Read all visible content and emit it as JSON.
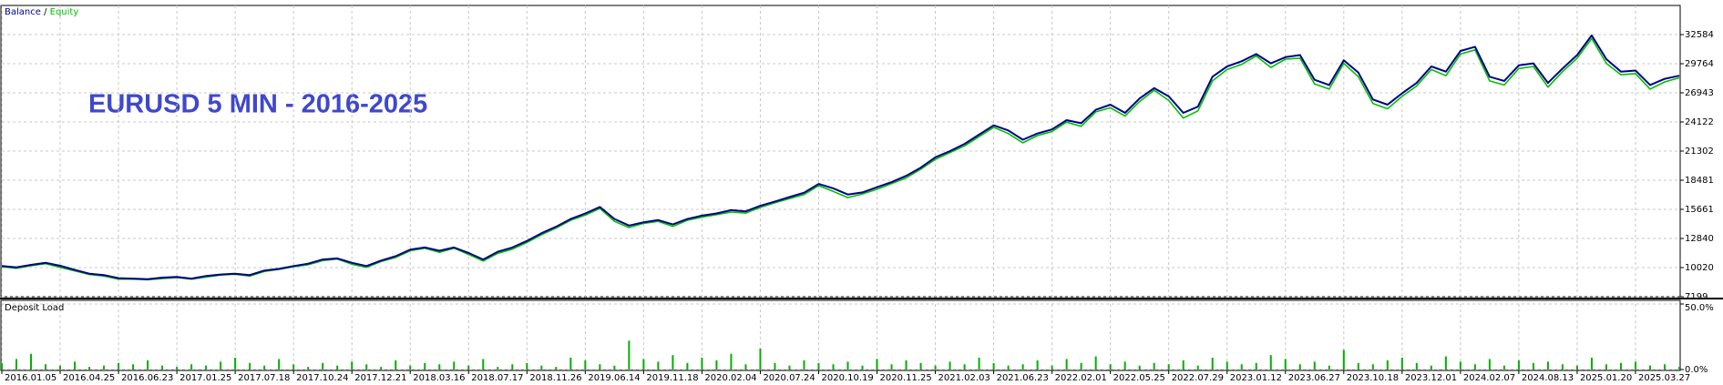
{
  "chart_data": [
    {
      "type": "line",
      "title": "EURUSD 5 MIN - 2016-2025",
      "series": [
        {
          "name": "Balance",
          "color": "#00008b",
          "values": [
            10170,
            10050,
            10280,
            10490,
            10200,
            9800,
            9430,
            9300,
            9000,
            8950,
            8900,
            9050,
            9110,
            8950,
            9210,
            9350,
            9430,
            9300,
            9740,
            9900,
            10170,
            10400,
            10800,
            10910,
            10490,
            10170,
            10700,
            11120,
            11760,
            11970,
            11650,
            11970,
            11440,
            10800,
            11550,
            11970,
            12600,
            13350,
            13980,
            14730,
            15260,
            15890,
            14730,
            14090,
            14410,
            14620,
            14200,
            14730,
            15050,
            15260,
            15580,
            15470,
            16000,
            16420,
            16850,
            17270,
            18120,
            17700,
            17100,
            17300,
            17800,
            18300,
            18900,
            19700,
            20700,
            21300,
            22000,
            22900,
            23800,
            23300,
            22400,
            23000,
            23400,
            24300,
            24000,
            25300,
            25800,
            25000,
            26400,
            27400,
            26600,
            25000,
            25600,
            28500,
            29500,
            30000,
            30700,
            29800,
            30400,
            30600,
            28200,
            27700,
            30100,
            28900,
            26300,
            25800,
            26900,
            27900,
            29500,
            29000,
            31000,
            31400,
            28500,
            28100,
            29600,
            29800,
            27900,
            29300,
            30600,
            32500,
            30200,
            29000,
            29100,
            27700,
            28300,
            28600
          ]
        },
        {
          "name": "Equity",
          "color": "#00c000",
          "values": [
            10100,
            9950,
            10200,
            10400,
            10050,
            9700,
            9350,
            9200,
            8900,
            8900,
            8850,
            8950,
            9050,
            8900,
            9100,
            9300,
            9380,
            9200,
            9650,
            9850,
            10100,
            10300,
            10700,
            10850,
            10350,
            10050,
            10600,
            11000,
            11650,
            11900,
            11500,
            11900,
            11300,
            10650,
            11400,
            11800,
            12450,
            13200,
            13850,
            14600,
            15100,
            15750,
            14500,
            13900,
            14300,
            14500,
            14000,
            14600,
            14900,
            15150,
            15400,
            15300,
            15850,
            16300,
            16700,
            17100,
            17950,
            17400,
            16800,
            17150,
            17600,
            18150,
            18700,
            19550,
            20500,
            21150,
            21800,
            22700,
            23600,
            23000,
            22100,
            22800,
            23200,
            24100,
            23700,
            25100,
            25500,
            24700,
            26100,
            27200,
            26200,
            24500,
            25200,
            28100,
            29200,
            29700,
            30500,
            29400,
            30200,
            30300,
            27800,
            27300,
            29800,
            28500,
            25900,
            25400,
            26600,
            27600,
            29200,
            28600,
            30700,
            31100,
            28100,
            27700,
            29300,
            29500,
            27500,
            29000,
            30300,
            32200,
            29800,
            28700,
            28800,
            27300,
            28000,
            28400
          ]
        }
      ],
      "xlim": [
        0,
        115
      ],
      "xticks": [
        {
          "value": 0,
          "label": "2016.01.05"
        },
        {
          "value": 4,
          "label": "2016.04.25"
        },
        {
          "value": 8,
          "label": "2016.06.23"
        },
        {
          "value": 12,
          "label": "2017.01.25"
        },
        {
          "value": 16,
          "label": "2017.07.18"
        },
        {
          "value": 20,
          "label": "2017.10.24"
        },
        {
          "value": 24,
          "label": "2017.12.21"
        },
        {
          "value": 28,
          "label": "2018.03.16"
        },
        {
          "value": 32,
          "label": "2018.07.17"
        },
        {
          "value": 36,
          "label": "2018.11.26"
        },
        {
          "value": 40,
          "label": "2019.06.14"
        },
        {
          "value": 44,
          "label": "2019.11.18"
        },
        {
          "value": 48,
          "label": "2020.02.04"
        },
        {
          "value": 52,
          "label": "2020.07.24"
        },
        {
          "value": 56,
          "label": "2020.10.19"
        },
        {
          "value": 60,
          "label": "2020.11.25"
        },
        {
          "value": 64,
          "label": "2021.02.03"
        },
        {
          "value": 68,
          "label": "2021.06.23"
        },
        {
          "value": 72,
          "label": "2022.02.01"
        },
        {
          "value": 76,
          "label": "2022.05.25"
        },
        {
          "value": 80,
          "label": "2022.07.29"
        },
        {
          "value": 84,
          "label": "2023.01.12"
        },
        {
          "value": 88,
          "label": "2023.06.27"
        },
        {
          "value": 92,
          "label": "2023.10.18"
        },
        {
          "value": 96,
          "label": "2023.12.01"
        },
        {
          "value": 100,
          "label": "2024.02.07"
        },
        {
          "value": 104,
          "label": "2024.08.13"
        },
        {
          "value": 108,
          "label": "2025.01.20"
        },
        {
          "value": 112,
          "label": "2025.03.27"
        }
      ],
      "ylim": [
        7199,
        35404
      ],
      "yticks": [
        7199,
        10020,
        12840,
        15661,
        18481,
        21302,
        24122,
        26943,
        29764,
        32584
      ],
      "grid": true
    },
    {
      "type": "bar",
      "title": "Deposit Load",
      "color": "#00b000",
      "values": [
        5,
        8,
        12,
        4,
        3,
        6,
        2,
        3,
        5,
        4,
        7,
        3,
        2,
        4,
        3,
        6,
        9,
        5,
        3,
        8,
        4,
        2,
        5,
        3,
        6,
        4,
        2,
        7,
        3,
        5,
        4,
        6,
        3,
        8,
        2,
        4,
        5,
        3,
        2,
        9,
        7,
        4,
        3,
        22,
        8,
        6,
        11,
        5,
        9,
        7,
        12,
        4,
        16,
        5,
        3,
        7,
        5,
        4,
        6,
        3,
        8,
        4,
        7,
        5,
        3,
        6,
        4,
        9,
        5,
        3,
        4,
        7,
        3,
        8,
        5,
        10,
        4,
        6,
        3,
        5,
        4,
        7,
        3,
        9,
        6,
        4,
        5,
        11,
        8,
        4,
        6,
        3,
        15,
        5,
        4,
        7,
        9,
        5,
        3,
        10,
        6,
        4,
        8,
        3,
        7,
        5,
        6,
        4,
        3,
        9,
        4,
        5,
        6,
        3,
        4,
        2
      ],
      "ylim": [
        0,
        50
      ],
      "yticks": [
        {
          "value": 0,
          "label": "0.0%"
        },
        {
          "value": 50,
          "label": "50.0%"
        }
      ],
      "grid": true
    }
  ]
}
